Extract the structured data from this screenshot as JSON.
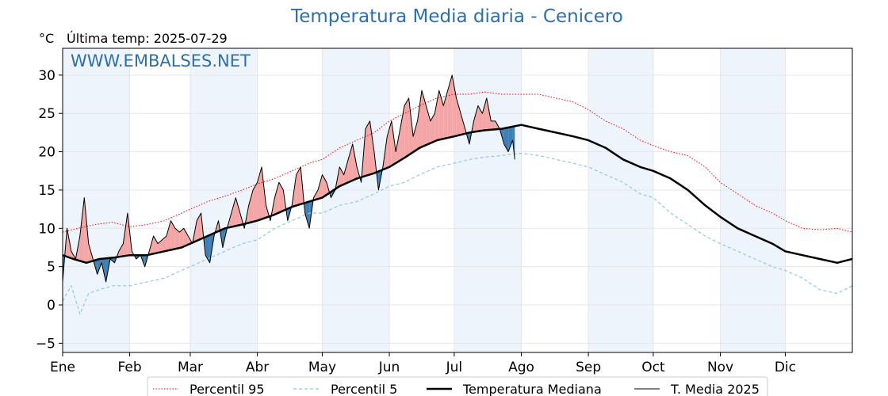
{
  "header": {
    "title": "Temperatura Media diaria - Cenicero",
    "unit": "°C",
    "last_temp": "Última temp: 2025-07-29"
  },
  "watermark": "WWW.EMBALSES.NET",
  "colors": {
    "title": "#2e6fa8",
    "p95": "#ff0000",
    "p5": "#8ec8e0",
    "median": "#000000",
    "current": "#000000",
    "above_fill": "#f4a6a6",
    "below_fill": "#3f7fb4",
    "band": "#eef4fb"
  },
  "chart_data": {
    "type": "line",
    "title": "Temperatura Media diaria - Cenicero",
    "ylabel": "°C",
    "xlabel": "",
    "ylim": [
      -6.2,
      33.5
    ],
    "xlim": [
      1,
      366
    ],
    "y_ticks": [
      -5,
      0,
      5,
      10,
      15,
      20,
      25,
      30
    ],
    "x_ticks": [
      {
        "label": "Ene",
        "day": 1
      },
      {
        "label": "Feb",
        "day": 32
      },
      {
        "label": "Mar",
        "day": 60
      },
      {
        "label": "Abr",
        "day": 91
      },
      {
        "label": "May",
        "day": 121
      },
      {
        "label": "Jun",
        "day": 152
      },
      {
        "label": "Jul",
        "day": 182
      },
      {
        "label": "Ago",
        "day": 213
      },
      {
        "label": "Sep",
        "day": 244
      },
      {
        "label": "Oct",
        "day": 274
      },
      {
        "label": "Nov",
        "day": 305
      },
      {
        "label": "Dic",
        "day": 335
      }
    ],
    "shaded_months": [
      [
        1,
        32
      ],
      [
        60,
        91
      ],
      [
        121,
        152
      ],
      [
        182,
        213
      ],
      [
        244,
        274
      ],
      [
        305,
        335
      ]
    ],
    "grid": true,
    "legend_position": "bottom",
    "series": [
      {
        "name": "Percentil 95",
        "style": "dotted",
        "color": "#ff0000",
        "x": [
          1,
          8,
          16,
          24,
          32,
          40,
          48,
          56,
          60,
          68,
          76,
          84,
          91,
          99,
          107,
          115,
          121,
          129,
          137,
          145,
          152,
          159,
          166,
          174,
          182,
          189,
          196,
          204,
          213,
          221,
          229,
          237,
          244,
          252,
          260,
          268,
          274,
          282,
          290,
          298,
          305,
          313,
          321,
          329,
          335,
          343,
          351,
          359,
          366
        ],
        "y": [
          9.5,
          10,
          10.5,
          10.8,
          10.2,
          10.5,
          11,
          12,
          12.5,
          13.5,
          14.2,
          15,
          15.8,
          16.5,
          17.5,
          18.5,
          19,
          20.5,
          21.5,
          22.5,
          24,
          25,
          26,
          27,
          27.5,
          27.5,
          27.8,
          27.5,
          27.5,
          27.5,
          27,
          26.5,
          25.5,
          24,
          23,
          21.5,
          20.8,
          20,
          19.5,
          18,
          16,
          14.5,
          13,
          12,
          11,
          10,
          9.8,
          10,
          9.5
        ]
      },
      {
        "name": "Percentil 5",
        "style": "dashed",
        "color": "#8ec8e0",
        "x": [
          1,
          5,
          9,
          13,
          18,
          24,
          32,
          40,
          48,
          56,
          60,
          68,
          76,
          84,
          91,
          99,
          107,
          115,
          121,
          129,
          137,
          145,
          152,
          159,
          166,
          174,
          182,
          189,
          196,
          204,
          213,
          221,
          229,
          237,
          244,
          252,
          260,
          268,
          274,
          282,
          290,
          298,
          305,
          313,
          321,
          329,
          335,
          343,
          351,
          359,
          366
        ],
        "y": [
          0.5,
          2.5,
          -1.2,
          1.5,
          2,
          2.5,
          2.5,
          3,
          3.5,
          4.5,
          5,
          6,
          7,
          8,
          8.5,
          10,
          11,
          12,
          12,
          13,
          13.5,
          14.5,
          15.5,
          16,
          17,
          18,
          18.5,
          19,
          19.3,
          19.5,
          19.8,
          19.5,
          19,
          18.5,
          18,
          17,
          16,
          14.5,
          14,
          12,
          10.5,
          9,
          8,
          7,
          6,
          5,
          4.5,
          3.5,
          2,
          1.5,
          2.5
        ]
      },
      {
        "name": "Temperatura Mediana",
        "style": "solid-thick",
        "color": "#000000",
        "x": [
          1,
          6,
          12,
          18,
          25,
          32,
          40,
          48,
          56,
          60,
          68,
          76,
          84,
          91,
          99,
          107,
          115,
          121,
          129,
          137,
          145,
          152,
          159,
          166,
          174,
          182,
          189,
          196,
          204,
          213,
          221,
          229,
          237,
          244,
          252,
          260,
          268,
          274,
          282,
          290,
          298,
          305,
          313,
          321,
          329,
          335,
          343,
          351,
          359,
          366
        ],
        "y": [
          6.5,
          6,
          5.5,
          6,
          6.2,
          6.5,
          6.5,
          7,
          7.5,
          8,
          9,
          10,
          10.5,
          11,
          11.8,
          12.8,
          13.5,
          14,
          15.5,
          16.5,
          17.2,
          18,
          19.2,
          20.5,
          21.5,
          22,
          22.5,
          22.8,
          23,
          23.5,
          23,
          22.5,
          22,
          21.5,
          20.5,
          19,
          18,
          17.5,
          16.5,
          15,
          13,
          11.5,
          10,
          9,
          8,
          7,
          6.5,
          6,
          5.5,
          6
        ]
      },
      {
        "name": "T. Media 2025",
        "style": "solid-thin",
        "color": "#000000",
        "x": [
          1,
          3,
          5,
          7,
          9,
          11,
          13,
          15,
          17,
          19,
          21,
          23,
          25,
          27,
          29,
          31,
          33,
          35,
          37,
          39,
          41,
          43,
          45,
          47,
          49,
          51,
          53,
          55,
          57,
          59,
          61,
          63,
          65,
          67,
          69,
          71,
          73,
          75,
          77,
          79,
          81,
          83,
          85,
          87,
          89,
          91,
          93,
          95,
          97,
          99,
          101,
          103,
          105,
          107,
          109,
          111,
          113,
          115,
          117,
          119,
          121,
          123,
          125,
          127,
          129,
          131,
          133,
          135,
          137,
          139,
          141,
          143,
          145,
          147,
          149,
          151,
          153,
          155,
          157,
          159,
          161,
          163,
          165,
          167,
          169,
          171,
          173,
          175,
          177,
          179,
          181,
          183,
          185,
          187,
          189,
          191,
          193,
          195,
          197,
          199,
          201,
          203,
          205,
          207,
          209,
          210
        ],
        "y": [
          3,
          10,
          7,
          6,
          9,
          14,
          8,
          6,
          4,
          5.5,
          3,
          6,
          5.5,
          7,
          8,
          12,
          7,
          6,
          6.5,
          5,
          7,
          9,
          8,
          8.5,
          9,
          11,
          10,
          9.5,
          10,
          9,
          8,
          11,
          12,
          6.5,
          5.5,
          9,
          11,
          7.5,
          10,
          12,
          14,
          12,
          10,
          13,
          15,
          16,
          18,
          13,
          11,
          14,
          16,
          15,
          11,
          13,
          17,
          18,
          12,
          10,
          14,
          15,
          17,
          16,
          14,
          15,
          18,
          17,
          19,
          21,
          18,
          16,
          23,
          24,
          20,
          15,
          18,
          22,
          24,
          20,
          23,
          26,
          27,
          22,
          24,
          28,
          26,
          24,
          25,
          28,
          26,
          28,
          30,
          27,
          25,
          23,
          21,
          24,
          26,
          25,
          27,
          24,
          24,
          23,
          21,
          20,
          21.5,
          19
        ]
      }
    ]
  },
  "legend": {
    "items": [
      {
        "label": "Percentil 95"
      },
      {
        "label": "Percentil 5"
      },
      {
        "label": "Temperatura Mediana"
      },
      {
        "label": "T. Media 2025"
      }
    ]
  }
}
